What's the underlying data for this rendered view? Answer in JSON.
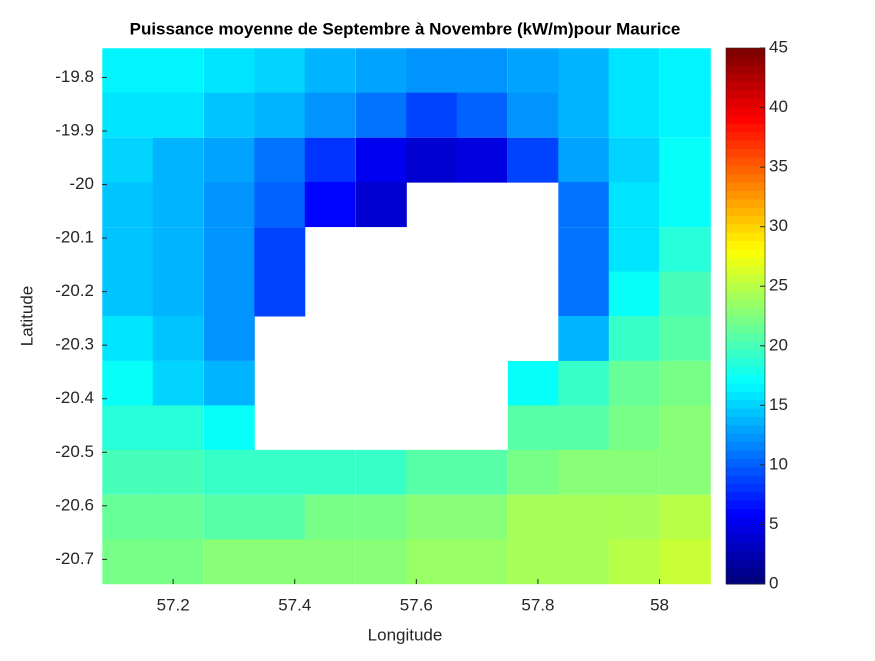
{
  "chart_data": {
    "type": "heatmap",
    "title": "Puissance moyenne de Septembre à Novembre (kW/m)pour Maurice",
    "x_label": "Longitude",
    "y_label": "Latitude",
    "colormap": "jet",
    "clim": [
      0,
      45
    ],
    "cticks": [
      0,
      5,
      10,
      15,
      20,
      25,
      30,
      35,
      40,
      45
    ],
    "x": [
      57.125,
      57.208,
      57.292,
      57.375,
      57.458,
      57.542,
      57.625,
      57.708,
      57.792,
      57.875,
      57.958,
      58.042
    ],
    "y": [
      -19.787,
      -19.87,
      -19.954,
      -20.037,
      -20.121,
      -20.204,
      -20.287,
      -20.371,
      -20.454,
      -20.537,
      -20.621,
      -20.704
    ],
    "z": [
      [
        16.5,
        16.5,
        15.5,
        15,
        14,
        13,
        12,
        12,
        13,
        14,
        15.5,
        16.5
      ],
      [
        16,
        16,
        14.5,
        14,
        12,
        11,
        9,
        10,
        12,
        14,
        15.5,
        16.5
      ],
      [
        15,
        14,
        13,
        11,
        8,
        5,
        4,
        4.5,
        9,
        13,
        15,
        17
      ],
      [
        14.5,
        13.5,
        12,
        10,
        6,
        4,
        null,
        null,
        null,
        11,
        15.5,
        17.5
      ],
      [
        14.5,
        13.5,
        12,
        9,
        null,
        null,
        null,
        null,
        null,
        11,
        15.5,
        18.5
      ],
      [
        14.5,
        13.5,
        12,
        9,
        null,
        null,
        null,
        null,
        null,
        11,
        17,
        20
      ],
      [
        15.5,
        14.5,
        12,
        null,
        null,
        null,
        null,
        null,
        null,
        13.5,
        19.5,
        21
      ],
      [
        17,
        15,
        13.5,
        null,
        null,
        null,
        null,
        null,
        17,
        19.5,
        21.5,
        22
      ],
      [
        18.5,
        18.5,
        17.5,
        null,
        null,
        null,
        null,
        null,
        20.5,
        21,
        22,
        22.5
      ],
      [
        20,
        20,
        19.5,
        19.5,
        19.5,
        19.5,
        20.5,
        21,
        22,
        23,
        23,
        23
      ],
      [
        21.5,
        21.5,
        21,
        21,
        22,
        22,
        23,
        23,
        24,
        24,
        24,
        25
      ],
      [
        22,
        22,
        22.5,
        22.5,
        22.5,
        23,
        23.5,
        23.5,
        24,
        24,
        25,
        25.5
      ]
    ],
    "xlim": [
      57.083,
      58.083
    ],
    "ylim": [
      -20.746,
      -19.745
    ],
    "xticks": [
      57.2,
      57.4,
      57.6,
      57.8,
      58
    ],
    "yticks": [
      -19.8,
      -19.9,
      -20,
      -20.1,
      -20.2,
      -20.3,
      -20.4,
      -20.5,
      -20.6,
      -20.7
    ]
  }
}
